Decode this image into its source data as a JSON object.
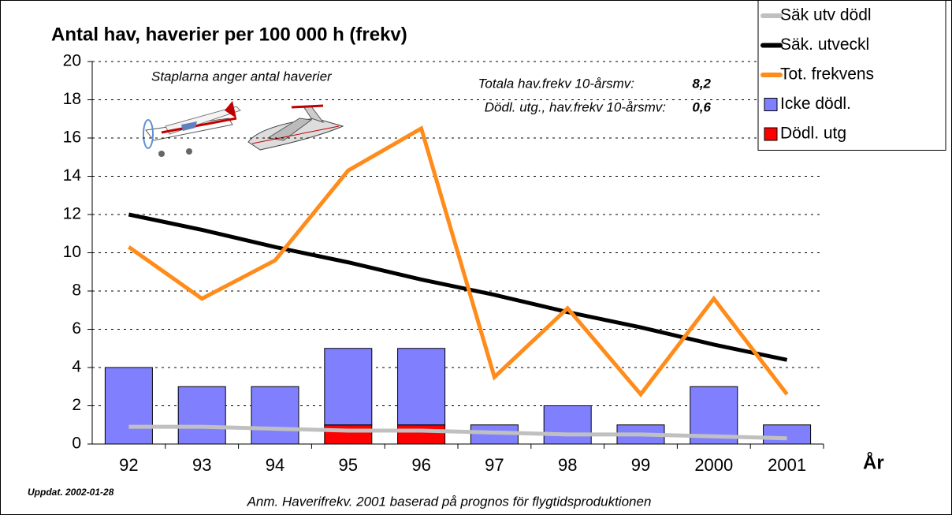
{
  "chart_data": {
    "type": "bar",
    "title": "Antal hav, haverier per 100 000 h (frekv)",
    "x_label": "År",
    "categories": [
      "92",
      "93",
      "94",
      "95",
      "96",
      "97",
      "98",
      "99",
      "2000",
      "2001"
    ],
    "series": [
      {
        "name": "Säk utv dödl",
        "type": "line",
        "color": "#c0c0c0",
        "values": [
          0.9,
          0.9,
          0.8,
          0.7,
          0.7,
          0.6,
          0.5,
          0.5,
          0.4,
          0.3
        ]
      },
      {
        "name": "Säk. utveckl",
        "type": "line",
        "color": "#000000",
        "values": [
          12.0,
          11.2,
          10.3,
          9.5,
          8.6,
          7.8,
          6.9,
          6.1,
          5.2,
          4.4
        ]
      },
      {
        "name": "Tot. frekvens",
        "type": "line",
        "color": "#ff8c1a",
        "values": [
          10.3,
          7.6,
          9.6,
          14.3,
          16.5,
          3.5,
          7.1,
          2.6,
          7.6,
          2.6
        ]
      },
      {
        "name": "Icke dödl.",
        "type": "bar",
        "color": "#8080ff",
        "values": [
          4,
          3,
          3,
          4,
          4,
          1,
          2,
          1,
          3,
          1
        ]
      },
      {
        "name": "Dödl. utg",
        "type": "bar",
        "color": "#ff0000",
        "values": [
          0,
          0,
          0,
          1,
          1,
          0,
          0,
          0,
          0,
          0
        ]
      }
    ],
    "ylim": [
      0,
      20
    ],
    "yticks": [
      0,
      2,
      4,
      6,
      8,
      10,
      12,
      14,
      16,
      18,
      20
    ],
    "grid": true,
    "annotations": {
      "bars_note": "Staplarna anger antal haverier",
      "total_label": "Totala hav.frekv 10-årsmv:",
      "total_value": "8,2",
      "fatal_label": "Dödl. utg., hav.frekv 10-årsmv:",
      "fatal_value": "0,6",
      "updated": "Uppdat. 2002-01-28",
      "note": "Anm. Haverifrekv. 2001 baserad på prognos för flygtidsproduktionen"
    }
  }
}
